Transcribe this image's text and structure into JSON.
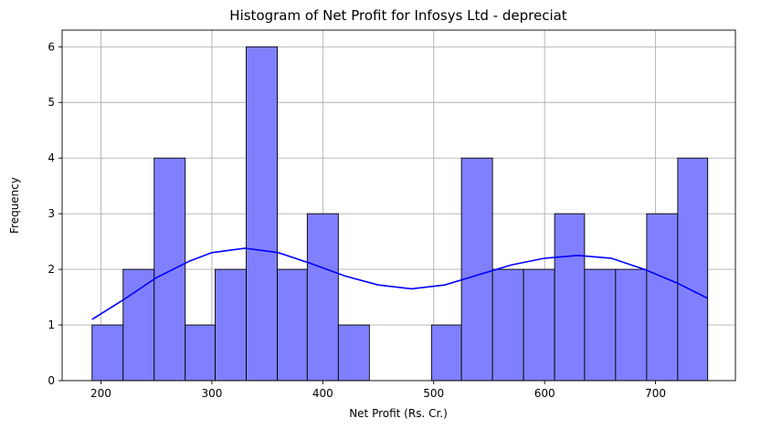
{
  "chart_data": {
    "type": "bar",
    "title": "Histogram of Net Profit for Infosys Ltd - depreciat",
    "xlabel": "Net Profit (Rs. Cr.)",
    "ylabel": "Frequency",
    "xlim": [
      165,
      772
    ],
    "ylim": [
      0,
      6.3
    ],
    "x_ticks": [
      200,
      300,
      400,
      500,
      600,
      700
    ],
    "y_ticks": [
      0,
      1,
      2,
      3,
      4,
      5,
      6
    ],
    "grid": true,
    "bin_edges": [
      192,
      220,
      248,
      276,
      303,
      331,
      359,
      386,
      414,
      442,
      470,
      498,
      525,
      553,
      581,
      609,
      636,
      664,
      692,
      720,
      747
    ],
    "counts": [
      1,
      2,
      4,
      1,
      2,
      6,
      2,
      3,
      1,
      0,
      0,
      1,
      4,
      2,
      2,
      3,
      2,
      2,
      3,
      4
    ],
    "kde": {
      "x": [
        192,
        220,
        250,
        280,
        300,
        330,
        360,
        390,
        420,
        450,
        480,
        510,
        540,
        570,
        600,
        630,
        660,
        690,
        720,
        747
      ],
      "y": [
        1.1,
        1.45,
        1.85,
        2.15,
        2.3,
        2.38,
        2.3,
        2.1,
        1.88,
        1.72,
        1.65,
        1.72,
        1.9,
        2.08,
        2.2,
        2.25,
        2.2,
        2.0,
        1.75,
        1.48
      ]
    },
    "colors": {
      "bar_fill": "#8080ff",
      "bar_edge": "#000000",
      "kde_line": "#0000ff"
    }
  }
}
